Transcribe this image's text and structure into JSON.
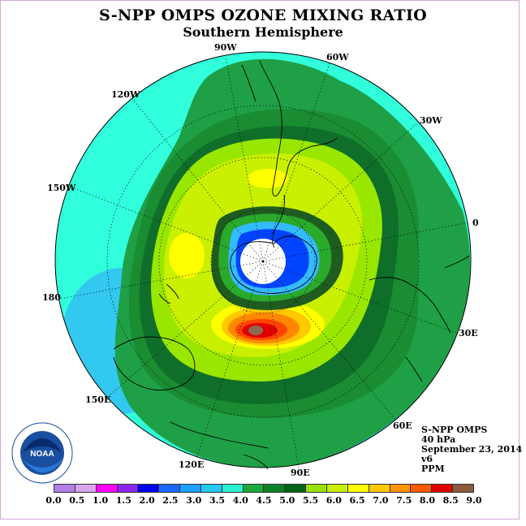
{
  "title": "S-NPP OMPS OZONE MIXING RATIO",
  "subtitle": "Southern Hemisphere",
  "longitude_labels": {
    "lon_90w": "90W",
    "lon_60w": "60W",
    "lon_120w": "120W",
    "lon_30w": "30W",
    "lon_150w": "150W",
    "lon_0": "0",
    "lon_180": "180",
    "lon_30e": "30E",
    "lon_150e": "150E",
    "lon_60e": "60E",
    "lon_120e": "120E",
    "lon_90e": "90E"
  },
  "info": {
    "instrument": "S-NPP OMPS",
    "level": "40 hPa",
    "date": "September 23, 2014",
    "version": "v6",
    "units": "PPM"
  },
  "logo_text": "NOAA",
  "colorbar": {
    "ticks": [
      "0.0",
      "0.5",
      "1.0",
      "1.5",
      "2.0",
      "2.5",
      "3.0",
      "3.5",
      "4.0",
      "4.5",
      "5.0",
      "5.5",
      "6.0",
      "6.5",
      "7.0",
      "7.5",
      "8.0",
      "8.5",
      "9.0"
    ],
    "colors": [
      "#b37ee8",
      "#d9a6ee",
      "#ff00ff",
      "#8c24f0",
      "#0000ee",
      "#1a66ff",
      "#1aa0ff",
      "#26c8f2",
      "#2af0d2",
      "#1aaa3c",
      "#0f8228",
      "#006418",
      "#99e000",
      "#c8f000",
      "#ffff00",
      "#ffc800",
      "#ff9600",
      "#ff5a00",
      "#e00000",
      "#8c5a3c"
    ]
  },
  "colors": {
    "ring_3_5": "#31ffdc",
    "ring_3_0": "#33c8f0",
    "ring_4_0": "#1fa046",
    "ring_4_5": "#1a8c32",
    "ring_5_0": "#0f6e2a",
    "ring_5_5": "#99e600",
    "ring_6_0": "#c8f000",
    "ring_6_5": "#ffff00",
    "vortex_dark": "#1f5c1f",
    "vortex_inner": "#2aaa2a",
    "hole_blue": "#0044ff",
    "hole_light": "#33bbff",
    "max_orange": "#ff8800",
    "max_red": "#ff2200",
    "max_brown": "#8c6a50"
  }
}
